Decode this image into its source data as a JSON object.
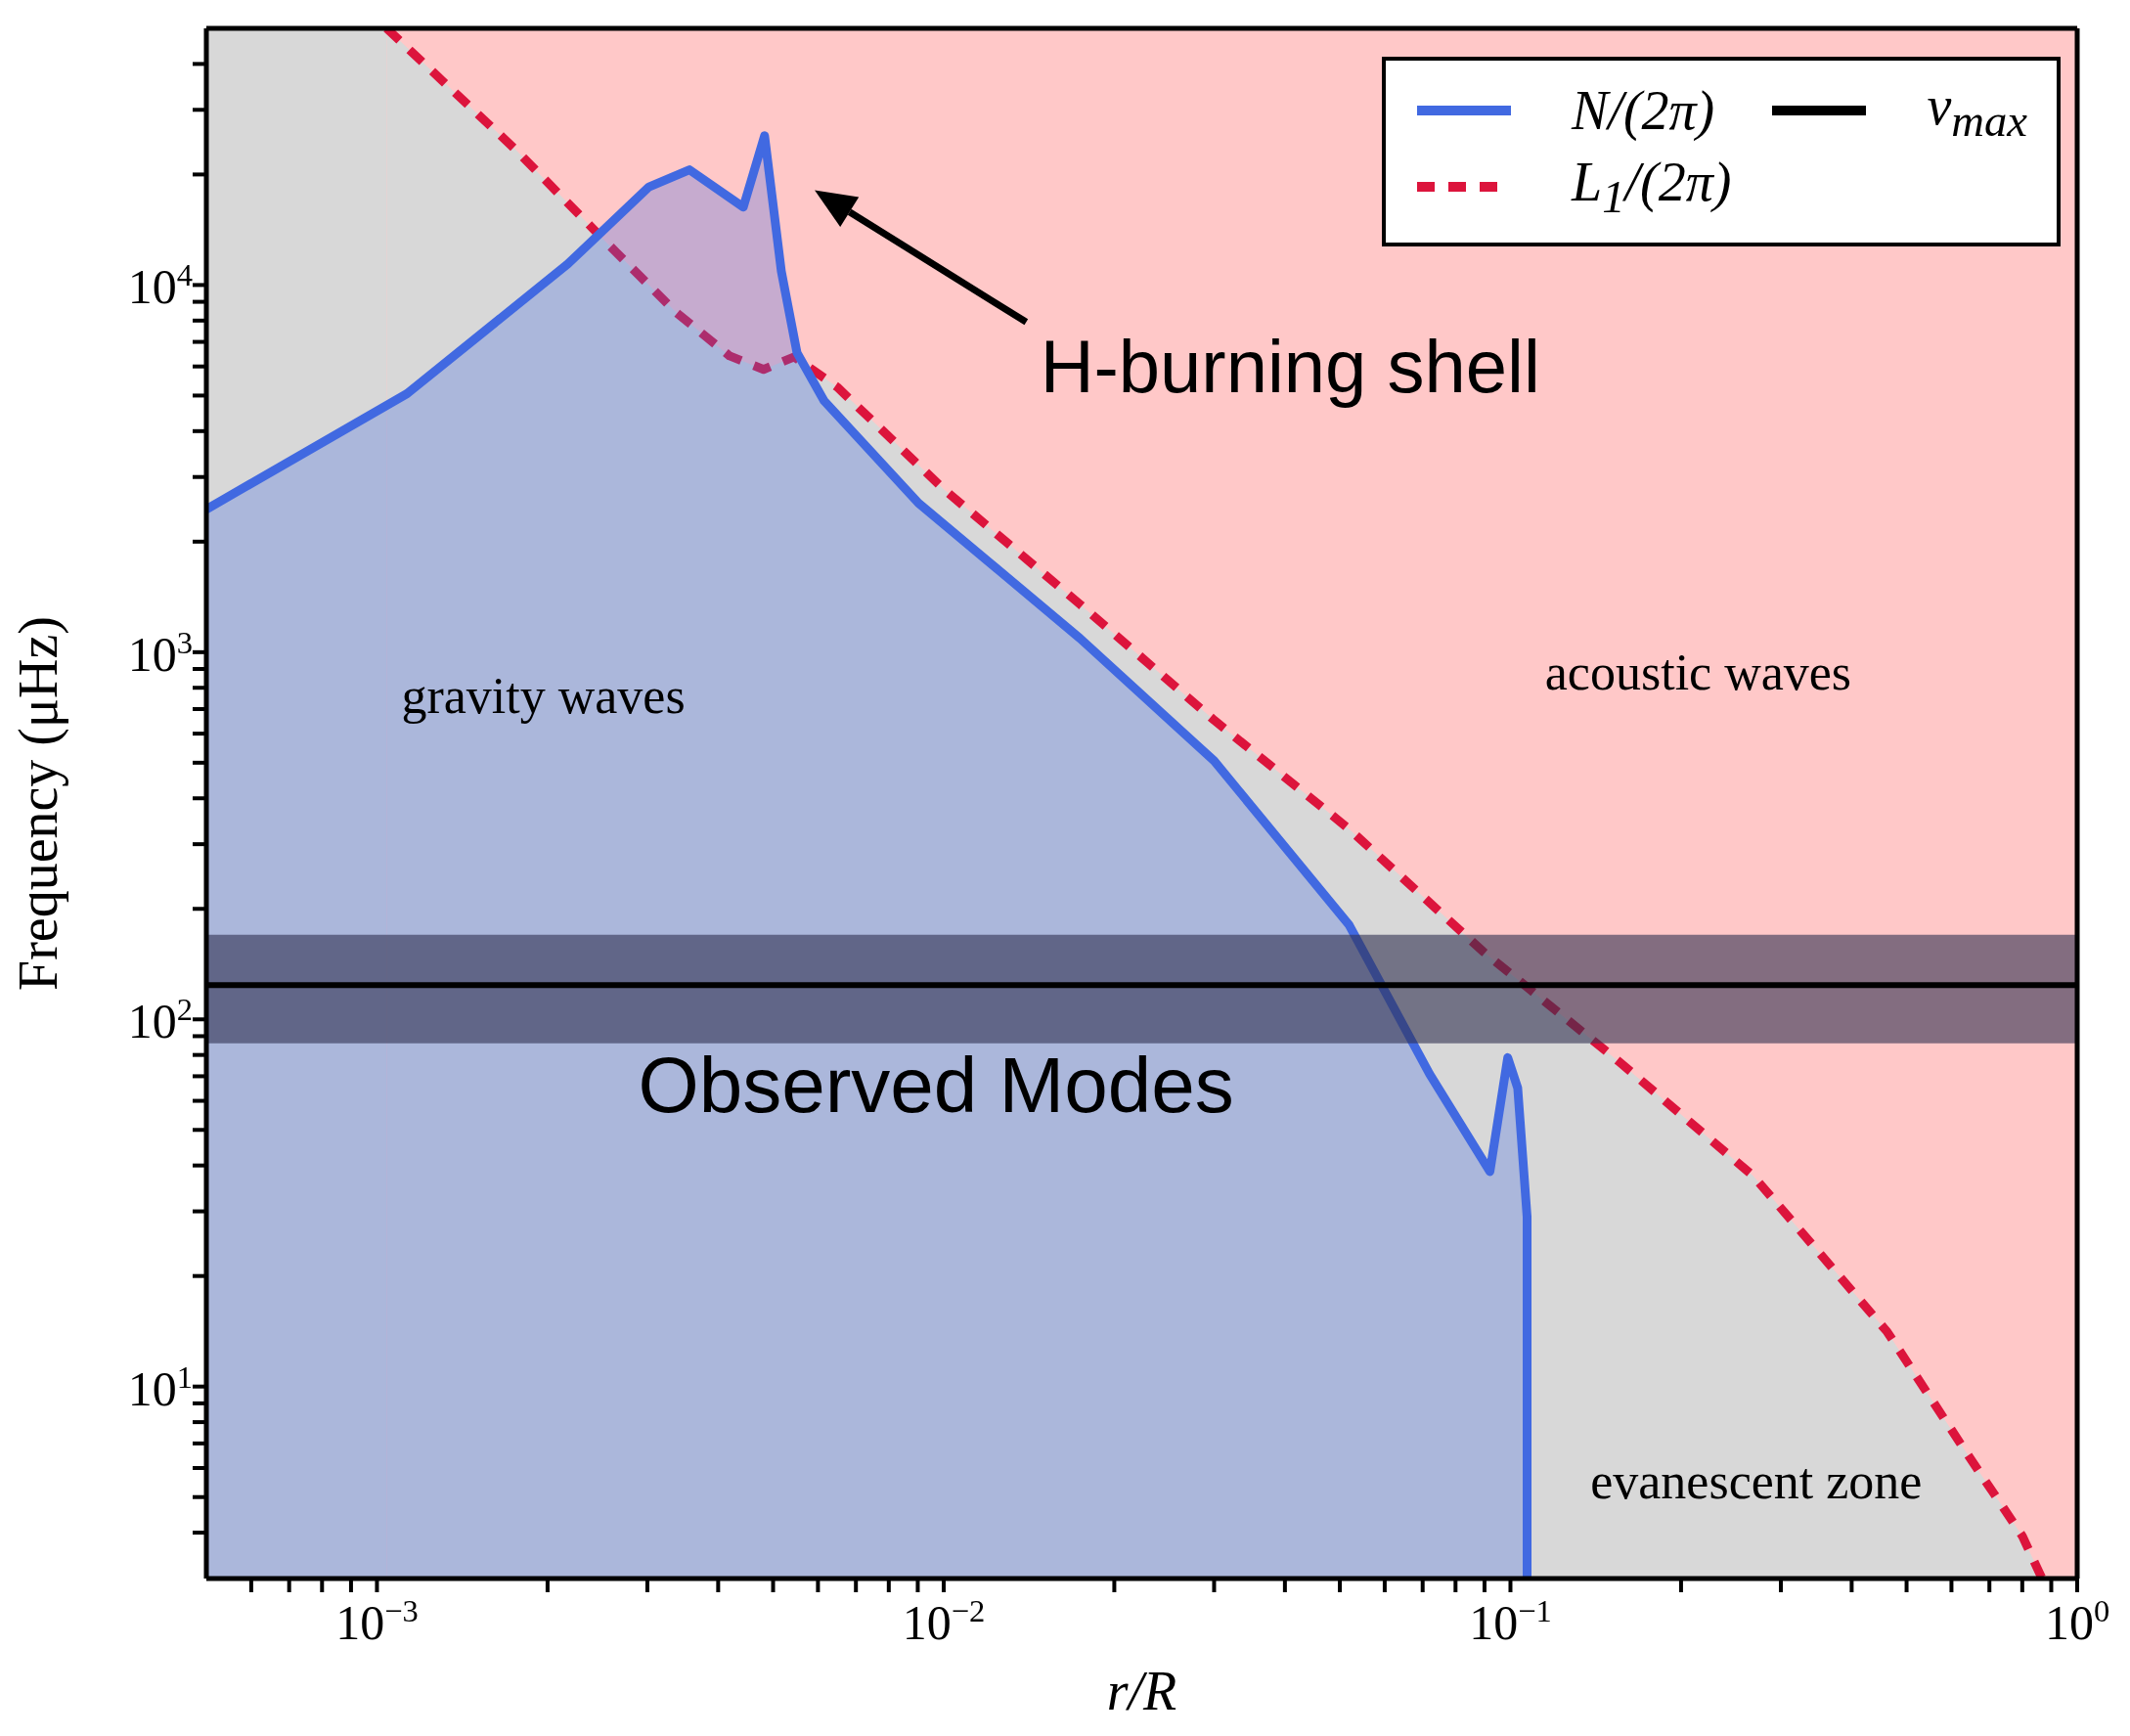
{
  "chart_data": {
    "type": "area",
    "xlabel": "r/R",
    "ylabel": "Frequency (μHz)",
    "log": "xy",
    "xlim": [
      0.0005,
      1
    ],
    "ylim": [
      3,
      50000
    ],
    "xticks": [
      {
        "value": 0.0006,
        "label": null
      },
      {
        "value": 0.0007,
        "label": null
      },
      {
        "value": 0.0008,
        "label": null
      },
      {
        "value": 0.0009,
        "label": null
      },
      {
        "value": 0.001,
        "label": "10$^{−3}$"
      },
      {
        "value": 0.002,
        "label": null
      },
      {
        "value": 0.003,
        "label": null
      },
      {
        "value": 0.004,
        "label": null
      },
      {
        "value": 0.005,
        "label": null
      },
      {
        "value": 0.006,
        "label": null
      },
      {
        "value": 0.007,
        "label": null
      },
      {
        "value": 0.008,
        "label": null
      },
      {
        "value": 0.009,
        "label": null
      },
      {
        "value": 0.01,
        "label": "10$^{−2}$"
      },
      {
        "value": 0.02,
        "label": null
      },
      {
        "value": 0.03,
        "label": null
      },
      {
        "value": 0.04,
        "label": null
      },
      {
        "value": 0.05,
        "label": null
      },
      {
        "value": 0.06,
        "label": null
      },
      {
        "value": 0.07,
        "label": null
      },
      {
        "value": 0.08,
        "label": null
      },
      {
        "value": 0.09,
        "label": null
      },
      {
        "value": 0.1,
        "label": "10$^{−1}$"
      },
      {
        "value": 0.2,
        "label": null
      },
      {
        "value": 0.3,
        "label": null
      },
      {
        "value": 0.4,
        "label": null
      },
      {
        "value": 0.5,
        "label": null
      },
      {
        "value": 0.6,
        "label": null
      },
      {
        "value": 0.7,
        "label": null
      },
      {
        "value": 0.8,
        "label": null
      },
      {
        "value": 0.9,
        "label": null
      },
      {
        "value": 1,
        "label": "10$^{0}$"
      }
    ],
    "yticks": [
      {
        "value": 4,
        "label": null
      },
      {
        "value": 5,
        "label": null
      },
      {
        "value": 6,
        "label": null
      },
      {
        "value": 7,
        "label": null
      },
      {
        "value": 8,
        "label": null
      },
      {
        "value": 9,
        "label": null
      },
      {
        "value": 10,
        "label": "10$^{1}$"
      },
      {
        "value": 20,
        "label": null
      },
      {
        "value": 30,
        "label": null
      },
      {
        "value": 40,
        "label": null
      },
      {
        "value": 50,
        "label": null
      },
      {
        "value": 60,
        "label": null
      },
      {
        "value": 70,
        "label": null
      },
      {
        "value": 80,
        "label": null
      },
      {
        "value": 90,
        "label": null
      },
      {
        "value": 100,
        "label": "10$^{2}$"
      },
      {
        "value": 200,
        "label": null
      },
      {
        "value": 300,
        "label": null
      },
      {
        "value": 400,
        "label": null
      },
      {
        "value": 500,
        "label": null
      },
      {
        "value": 600,
        "label": null
      },
      {
        "value": 700,
        "label": null
      },
      {
        "value": 800,
        "label": null
      },
      {
        "value": 900,
        "label": null
      },
      {
        "value": 1000,
        "label": "10$^{3}$"
      },
      {
        "value": 2000,
        "label": null
      },
      {
        "value": 3000,
        "label": null
      },
      {
        "value": 4000,
        "label": null
      },
      {
        "value": 5000,
        "label": null
      },
      {
        "value": 6000,
        "label": null
      },
      {
        "value": 7000,
        "label": null
      },
      {
        "value": 8000,
        "label": null
      },
      {
        "value": 9000,
        "label": null
      },
      {
        "value": 10000,
        "label": "10$^{4}$"
      },
      {
        "value": 20000,
        "label": null
      },
      {
        "value": 30000,
        "label": null
      },
      {
        "value": 40000,
        "label": null
      }
    ],
    "series": [
      {
        "name": "N/(2π)",
        "color": "#4169e1",
        "line_style": "solid",
        "x": [
          0.0005,
          0.00113,
          0.00217,
          0.00302,
          0.00356,
          0.00443,
          0.00483,
          0.00517,
          0.00551,
          0.00615,
          0.00902,
          0.0174,
          0.03,
          0.0519,
          0.072,
          0.092,
          0.0989,
          0.103,
          0.107,
          0.107
        ],
        "values": [
          2450,
          5060,
          11400,
          18500,
          20600,
          16300,
          25500,
          10900,
          6540,
          4840,
          2550,
          1090,
          506,
          181,
          71,
          38.5,
          78.7,
          65,
          29,
          3
        ]
      },
      {
        "name": "L$_{1}$/(2π)",
        "color": "#dc143c",
        "line_style": "dashed",
        "x": [
          0.00104,
          0.00175,
          0.00256,
          0.00337,
          0.00419,
          0.00481,
          0.00545,
          0.00649,
          0.01,
          0.0174,
          0.03,
          0.0519,
          0.0895,
          0.155,
          0.268,
          0.462,
          0.642,
          0.8,
          0.867
        ],
        "values": [
          50000,
          23500,
          12900,
          8430,
          6410,
          5890,
          6370,
          5270,
          2780,
          1350,
          653,
          330,
          153,
          77,
          37.5,
          14.1,
          6.5,
          3.92,
          3
        ]
      }
    ],
    "ref_lines": [
      {
        "axis": "y",
        "value": 124,
        "label": "ν$_{max}$",
        "color": "#000000"
      }
    ],
    "bands": [
      {
        "axis": "y",
        "from": 86,
        "to": 170,
        "label": "Observed Modes",
        "color": "#303050"
      }
    ],
    "legend": "top right",
    "annotations": [
      "H-burning shell",
      "gravity waves",
      "acoustic waves",
      "evanescent zone"
    ]
  }
}
